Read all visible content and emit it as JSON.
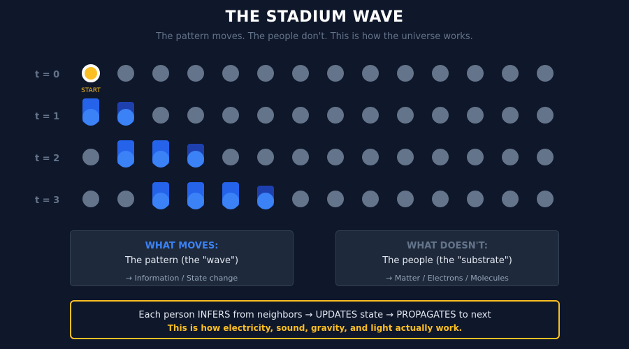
{
  "header": {
    "title": "THE STADIUM WAVE",
    "subtitle": "The pattern moves. The people don't. This is how the universe works."
  },
  "diagram": {
    "people_per_row": 14,
    "start_label": "START",
    "rows": [
      {
        "label": "t = 0",
        "states": [
          "start",
          "down",
          "down",
          "down",
          "down",
          "down",
          "down",
          "down",
          "down",
          "down",
          "down",
          "down",
          "down",
          "down"
        ]
      },
      {
        "label": "t = 1",
        "states": [
          "full",
          "half",
          "down",
          "down",
          "down",
          "down",
          "down",
          "down",
          "down",
          "down",
          "down",
          "down",
          "down",
          "down"
        ]
      },
      {
        "label": "t = 2",
        "states": [
          "down",
          "full",
          "full",
          "half",
          "down",
          "down",
          "down",
          "down",
          "down",
          "down",
          "down",
          "down",
          "down",
          "down"
        ]
      },
      {
        "label": "t = 3",
        "states": [
          "down",
          "down",
          "full",
          "full",
          "full",
          "half",
          "down",
          "down",
          "down",
          "down",
          "down",
          "down",
          "down",
          "down"
        ]
      }
    ],
    "colors": {
      "idle": "#64748b",
      "start": "#fbbf24",
      "raised": "#2563eb",
      "raising": "#1e40af"
    }
  },
  "cards": {
    "moves": {
      "heading": "WHAT MOVES:",
      "text": "The pattern (the \"wave\")",
      "note": "→ Information / State change"
    },
    "doesnt": {
      "heading": "WHAT DOESN'T:",
      "text": "The people (the \"substrate\")",
      "note": "→ Matter / Electrons / Molecules"
    }
  },
  "footer": {
    "line1": "Each person INFERS from neighbors → UPDATES state → PROPAGATES to next",
    "line2": "This is how electricity, sound, gravity, and light actually work."
  }
}
